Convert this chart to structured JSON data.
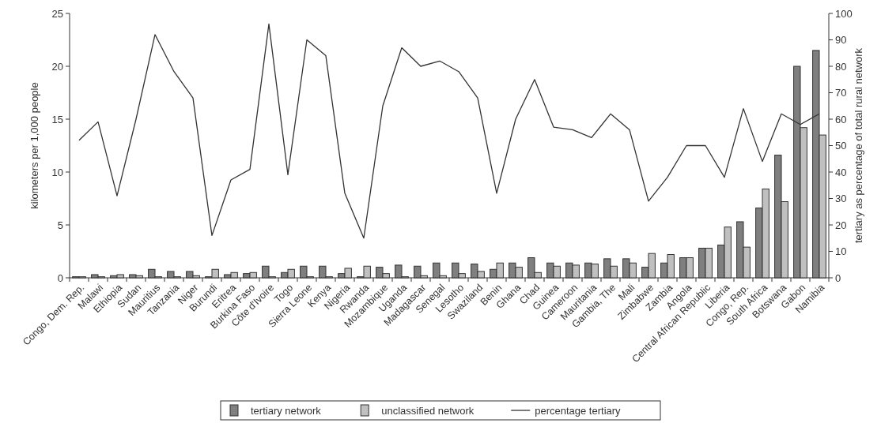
{
  "chart_data": {
    "type": "bar",
    "xlabel": null,
    "ylabel": "kilometers per 1,000 people",
    "y2label": "tertiary as percentage of total rural network",
    "categories": [
      "Congo, Dem. Rep.",
      "Malawi",
      "Ethiopia",
      "Sudan",
      "Mauritius",
      "Tanzania",
      "Niger",
      "Burundi",
      "Eritrea",
      "Burkina Faso",
      "Côte d'Ivoire",
      "Togo",
      "Sierra Leone",
      "Kenya",
      "Nigeria",
      "Rwanda",
      "Mozambique",
      "Uganda",
      "Madagascar",
      "Senegal",
      "Lesotho",
      "Swaziland",
      "Benin",
      "Ghana",
      "Chad",
      "Guinea",
      "Cameroon",
      "Mauritania",
      "Gambia, The",
      "Mali",
      "Zimbabwe",
      "Zambia",
      "Angola",
      "Central African Republic",
      "Liberia",
      "Congo, Rep.",
      "South Africa",
      "Botswana",
      "Gabon",
      "Namibia"
    ],
    "series": [
      {
        "name": "tertiary network",
        "color": "#7f7f7f",
        "values": [
          0.1,
          0.3,
          0.2,
          0.3,
          0.8,
          0.6,
          0.6,
          0.1,
          0.3,
          0.4,
          1.1,
          0.5,
          1.1,
          1.1,
          0.4,
          0.1,
          1.0,
          1.2,
          1.1,
          1.4,
          1.4,
          1.3,
          0.8,
          1.4,
          1.9,
          1.4,
          1.4,
          1.4,
          1.8,
          1.8,
          1.0,
          1.4,
          1.9,
          2.8,
          3.1,
          5.3,
          6.6,
          11.6,
          20.0,
          21.5
        ]
      },
      {
        "name": "unclassified network",
        "color": "#c0c0c0",
        "values": [
          0.1,
          0.1,
          0.3,
          0.2,
          0.1,
          0.1,
          0.2,
          0.8,
          0.5,
          0.5,
          0.1,
          0.8,
          0.1,
          0.1,
          0.9,
          1.1,
          0.4,
          0.1,
          0.2,
          0.2,
          0.4,
          0.6,
          1.4,
          1.0,
          0.5,
          1.1,
          1.2,
          1.3,
          1.1,
          1.4,
          2.3,
          2.2,
          1.9,
          2.8,
          4.8,
          2.9,
          8.4,
          7.2,
          14.2,
          13.5
        ]
      },
      {
        "name": "percentage tertiary",
        "type": "line",
        "axis": "y2",
        "color": "#333333",
        "values": [
          52,
          59,
          31,
          60,
          92,
          78,
          68,
          16,
          37,
          41,
          96,
          39,
          90,
          84,
          32,
          15,
          65,
          87,
          80,
          82,
          78,
          68,
          32,
          60,
          75,
          57,
          56,
          53,
          62,
          56,
          29,
          38,
          50,
          50,
          38,
          64,
          44,
          62,
          58,
          62
        ]
      }
    ],
    "ylim": [
      0,
      25
    ],
    "yticks": [
      0,
      5,
      10,
      15,
      20,
      25
    ],
    "y2lim": [
      0,
      100
    ],
    "y2ticks": [
      0,
      10,
      20,
      30,
      40,
      50,
      60,
      70,
      80,
      90,
      100
    ],
    "grid": false,
    "legend": "bottom",
    "marker": "none",
    "line_style": "solid"
  }
}
